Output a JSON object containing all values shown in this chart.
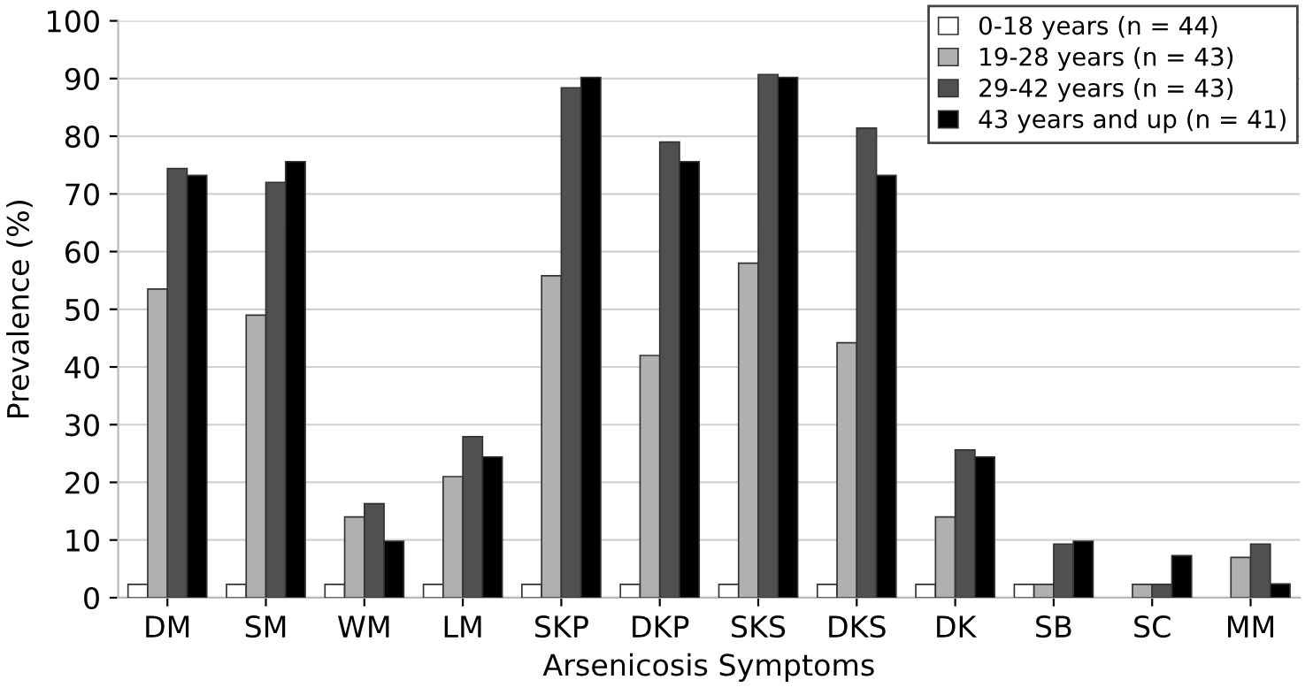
{
  "chart_data": {
    "type": "bar",
    "xlabel": "Arsenicosis Symptoms",
    "ylabel": "Prevalence (%)",
    "categories": [
      "DM",
      "SM",
      "WM",
      "LM",
      "SKP",
      "DKP",
      "SKS",
      "DKS",
      "DK",
      "SB",
      "SC",
      "MM"
    ],
    "series": [
      {
        "name": "0-18 years (n = 44)",
        "color": "#ffffff",
        "values": [
          2.3,
          2.3,
          2.3,
          2.3,
          2.3,
          2.3,
          2.3,
          2.3,
          2.3,
          2.3,
          null,
          null
        ]
      },
      {
        "name": "19-28 years (n = 43)",
        "color": "#b0b0b0",
        "values": [
          53.5,
          49,
          14,
          21,
          55.8,
          42,
          58,
          44.2,
          14,
          2.3,
          2.3,
          7
        ]
      },
      {
        "name": "29-42 years (n = 43)",
        "color": "#505050",
        "values": [
          74.4,
          72,
          16.3,
          27.9,
          88.4,
          79,
          90.7,
          81.4,
          25.6,
          9.3,
          2.3,
          9.3
        ]
      },
      {
        "name": "43 years and up (n = 41)",
        "color": "#000000",
        "values": [
          73.2,
          75.6,
          9.8,
          24.4,
          90.2,
          75.6,
          90.2,
          73.2,
          24.4,
          9.8,
          7.3,
          2.4
        ]
      }
    ],
    "ylim": [
      0,
      100
    ],
    "yticks": [
      0,
      10,
      20,
      30,
      40,
      50,
      60,
      70,
      80,
      90,
      100
    ],
    "grid": "y",
    "legend": "top right"
  }
}
